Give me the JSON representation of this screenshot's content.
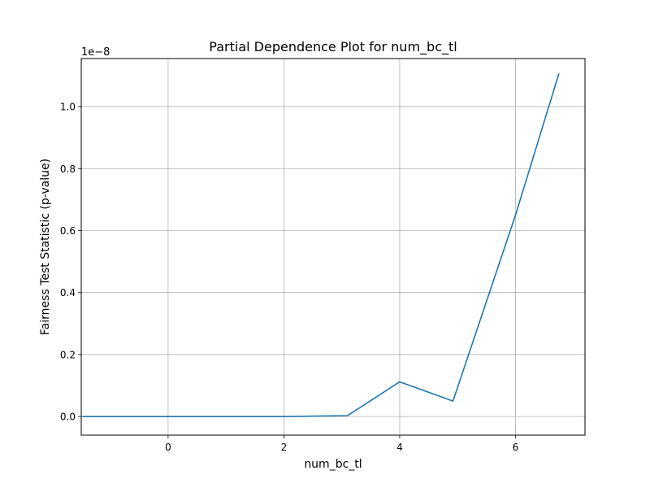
{
  "chart_data": {
    "type": "line",
    "title": "Partial Dependence Plot for num_bc_tl",
    "xlabel": "num_bc_tl",
    "ylabel": "Fairness Test Statistic (p-value)",
    "y_offset_label": "1e−8",
    "y_scale_factor": 1e-08,
    "xlim": [
      -1.5,
      7.2
    ],
    "ylim": [
      -0.06,
      1.155
    ],
    "x_ticks": [
      0,
      2,
      4,
      6
    ],
    "x_tick_labels": [
      "0",
      "2",
      "4",
      "6"
    ],
    "y_ticks": [
      0.0,
      0.2,
      0.4,
      0.6,
      0.8,
      1.0
    ],
    "y_tick_labels": [
      "0.0",
      "0.2",
      "0.4",
      "0.6",
      "0.8",
      "1.0"
    ],
    "grid": true,
    "line_color": "#1f77b4",
    "series": [
      {
        "x": [
          -1.48,
          0.0,
          2.0,
          3.1,
          4.0,
          4.92,
          6.0,
          6.75
        ],
        "values": [
          0.0,
          0.0,
          0.0,
          0.003,
          0.112,
          0.05,
          0.65,
          1.107
        ]
      }
    ]
  }
}
